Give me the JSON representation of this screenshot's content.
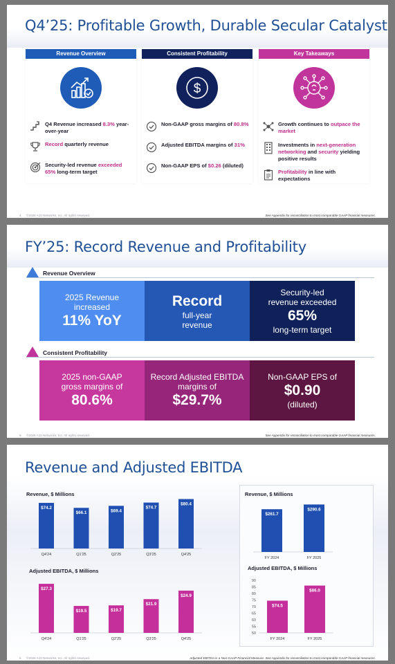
{
  "slide1": {
    "title": "Q4’25: Profitable Growth, Durable Secular Catalysts",
    "columns": [
      {
        "header": "Revenue Overview",
        "color": "#1f5cb8",
        "icon": "revenue-growth-chart-icon",
        "items": [
          {
            "icon": "stairs-icon",
            "parts": [
              {
                "t": "Q4 Revenue increased ",
                "hl": false
              },
              {
                "t": "8.3%",
                "hl": true
              },
              {
                "t": " year-over-year",
                "hl": false
              }
            ]
          },
          {
            "icon": "trophy-icon",
            "parts": [
              {
                "t": "Record",
                "hl": true
              },
              {
                "t": " quarterly revenue",
                "hl": false
              }
            ]
          },
          {
            "icon": "target-icon",
            "parts": [
              {
                "t": "Security-led revenue ",
                "hl": false
              },
              {
                "t": "exceeded 65%",
                "hl": true
              },
              {
                "t": " long-term target",
                "hl": false
              }
            ]
          }
        ]
      },
      {
        "header": "Consistent Profitability",
        "color": "#10215c",
        "icon": "dollar-coin-icon",
        "items": [
          {
            "icon": "check-circle-icon",
            "parts": [
              {
                "t": "Non-GAAP gross margins of ",
                "hl": false
              },
              {
                "t": "80.8%",
                "hl": true
              }
            ]
          },
          {
            "icon": "check-circle-icon",
            "parts": [
              {
                "t": "Adjusted EBITDA margins of ",
                "hl": false
              },
              {
                "t": "31%",
                "hl": true
              }
            ]
          },
          {
            "icon": "check-circle-icon",
            "parts": [
              {
                "t": "Non-GAAP EPS of ",
                "hl": false
              },
              {
                "t": "$0.26",
                "hl": true
              },
              {
                "t": " (diluted)",
                "hl": false
              }
            ]
          }
        ]
      },
      {
        "header": "Key Takeaways",
        "color": "#c1349b",
        "icon": "lightbulb-network-icon",
        "items": [
          {
            "icon": "network-icon",
            "parts": [
              {
                "t": "Growth continues to ",
                "hl": false
              },
              {
                "t": "outpace the market",
                "hl": true
              }
            ]
          },
          {
            "icon": "building-icon",
            "parts": [
              {
                "t": "Investments in ",
                "hl": false
              },
              {
                "t": "next-generation networking",
                "hl": true
              },
              {
                "t": " and ",
                "hl": false
              },
              {
                "t": "security",
                "hl": true
              },
              {
                "t": " yielding positive results",
                "hl": false
              }
            ]
          },
          {
            "icon": "clipboard-icon",
            "parts": [
              {
                "t": "Profitability",
                "hl": true
              },
              {
                "t": " in line with expectations",
                "hl": false
              }
            ]
          }
        ]
      }
    ],
    "footer": {
      "page": "4",
      "copyright": "©2026 A10 Networks, Inc. All rights reserved.",
      "note": "See Appendix for reconciliation to most comparable GAAP financial measures."
    }
  },
  "slide2": {
    "title": "FY’25: Record Revenue and Profitability",
    "section1": {
      "label": "Revenue Overview",
      "color": "#3d7bd8",
      "boxes": [
        {
          "lines": [
            "2025 Revenue",
            "increased"
          ],
          "big": "11% YoY",
          "after": [],
          "color": "#4f8ef0"
        },
        {
          "lines": [],
          "big": "Record",
          "after": [
            "full-year",
            "revenue"
          ],
          "color": "#2557b5"
        },
        {
          "lines": [
            "Security-led",
            "revenue exceeded"
          ],
          "big": "65%",
          "after": [
            "long-term target"
          ],
          "color": "#0f2158"
        }
      ]
    },
    "section2": {
      "label": "Consistent Profitability",
      "color": "#c1349b",
      "boxes": [
        {
          "lines": [
            "2025 non-GAAP",
            "gross margins of"
          ],
          "big": "80.6%",
          "after": [],
          "color": "#c7389e"
        },
        {
          "lines": [
            "Record Adjusted EBITDA",
            "margins of"
          ],
          "big": "$29.7%",
          "after": [],
          "color": "#962679"
        },
        {
          "lines": [
            "Non-GAAP EPS of"
          ],
          "big": "$0.90",
          "after": [
            "(diluted)"
          ],
          "color": "#5c1641"
        }
      ]
    },
    "footer": {
      "page": "5",
      "copyright": "©2026 A10 Networks, Inc. All rights reserved.",
      "note": "See Appendix for reconciliation to most comparable GAAP financial measures."
    }
  },
  "slide3": {
    "title": "Revenue and Adjusted EBITDA",
    "charts": {
      "quarterly_revenue": {
        "title": "Revenue, $ Millions"
      },
      "quarterly_ebitda": {
        "title": "Adjusted EBITDA, $ Millions"
      },
      "annual_revenue": {
        "title": "Revenue, $ Millions"
      },
      "annual_ebitda": {
        "title": "Adjusted EBITDA, $ Millions"
      }
    },
    "footer": {
      "page": "6",
      "copyright": "©2026 A10 Networks, Inc. All rights reserved.",
      "note": "Adjusted EBITDA is a Non-GAAP Financial Measure. See Appendix for reconciliation to most comparable GAAP financial measures."
    }
  },
  "chart_data": [
    {
      "type": "bar",
      "title": "Revenue, $ Millions",
      "categories": [
        "Q4'24",
        "Q1'25",
        "Q2'25",
        "Q3'25",
        "Q4'25"
      ],
      "values": [
        74.2,
        66.1,
        69.4,
        74.7,
        80.4
      ],
      "labels": [
        "$74.2",
        "$66.1",
        "$69.4",
        "$74.7",
        "$80.4"
      ],
      "color": "#1f4fb0",
      "ylim": [
        0,
        90
      ]
    },
    {
      "type": "bar",
      "title": "Adjusted EBITDA, $ Millions",
      "categories": [
        "Q4'24",
        "Q1'25",
        "Q2'25",
        "Q3'25",
        "Q4'25"
      ],
      "values": [
        27.3,
        19.5,
        19.7,
        21.9,
        24.9
      ],
      "labels": [
        "$27.3",
        "$19.5",
        "$19.7",
        "$21.9",
        "$24.9"
      ],
      "color": "#c52f9c",
      "ylim": [
        10,
        30
      ]
    },
    {
      "type": "bar",
      "title": "Revenue, $ Millions",
      "categories": [
        "FY 2024",
        "FY 2025"
      ],
      "values": [
        261.7,
        290.6
      ],
      "labels": [
        "$261.7",
        "$290.6"
      ],
      "color": "#1f4fb0",
      "ylim": [
        0,
        360
      ]
    },
    {
      "type": "bar",
      "title": "Adjusted EBITDA, $ Millions",
      "categories": [
        "FY 2024",
        "FY 2025"
      ],
      "values": [
        74.5,
        86.0
      ],
      "labels": [
        "$74.5",
        "$86.0"
      ],
      "color": "#c52f9c",
      "ylim": [
        50,
        90
      ],
      "yticks": [
        50,
        55,
        60,
        65,
        70,
        75,
        80,
        85,
        90
      ]
    }
  ]
}
